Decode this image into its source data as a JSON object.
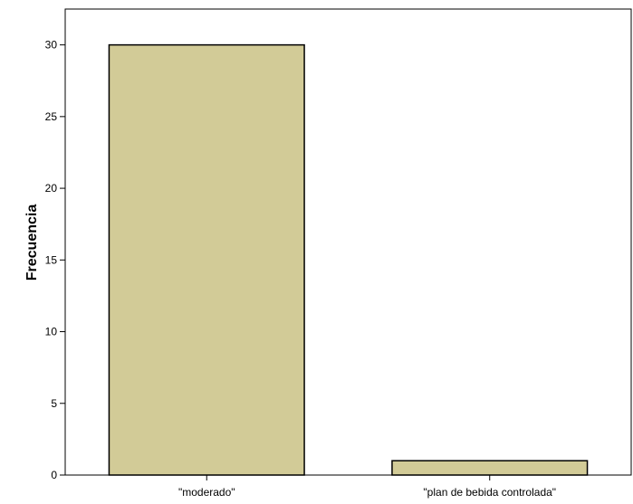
{
  "chart_data": {
    "type": "bar",
    "categories": [
      "\"moderado\"",
      "\"plan de bebida controlada\""
    ],
    "values": [
      30,
      1
    ],
    "title": "",
    "xlabel": "",
    "ylabel": "Frecuencia",
    "ylim": [
      0,
      32.5
    ],
    "yticks": [
      0,
      5,
      10,
      15,
      20,
      25,
      30
    ],
    "grid": false,
    "bar_color": "#d2cb97"
  }
}
